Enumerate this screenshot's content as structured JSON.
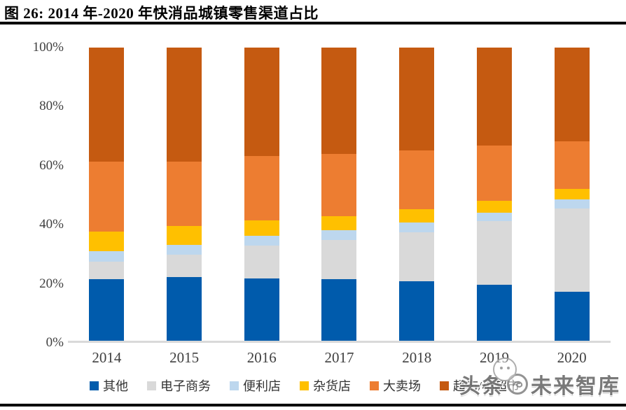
{
  "figure": {
    "title": "图 26: 2014 年-2020 年快消品城镇零售渠道占比"
  },
  "watermark": {
    "prefix": "头条",
    "suffix": "未来智库",
    "logo": "circle-logo-icon"
  },
  "chart_data": {
    "type": "bar",
    "stacked": true,
    "percent_stacked": true,
    "title": "2014 年-2020 年快消品城镇零售渠道占比",
    "categories": [
      "2014",
      "2015",
      "2016",
      "2017",
      "2018",
      "2019",
      "2020"
    ],
    "series": [
      {
        "name": "其他",
        "color": "#005BAC",
        "values": [
          21.0,
          21.8,
          21.2,
          20.9,
          20.2,
          19.1,
          16.8
        ]
      },
      {
        "name": "电子商务",
        "color": "#D9D9D9",
        "values": [
          6.0,
          7.5,
          11.2,
          13.5,
          16.8,
          21.6,
          28.4
        ]
      },
      {
        "name": "便利店",
        "color": "#BDD7EE",
        "values": [
          3.6,
          3.4,
          3.3,
          3.3,
          3.3,
          2.9,
          3.0
        ]
      },
      {
        "name": "杂货店",
        "color": "#FFC000",
        "values": [
          6.6,
          6.4,
          5.4,
          4.8,
          4.5,
          4.2,
          3.6
        ]
      },
      {
        "name": "大卖场",
        "color": "#ED7D31",
        "values": [
          23.8,
          22.1,
          21.9,
          21.2,
          20.1,
          18.7,
          16.3
        ]
      },
      {
        "name": "超市/小超市",
        "color": "#C55A11",
        "values": [
          39.0,
          38.8,
          37.0,
          36.3,
          35.1,
          33.5,
          31.9
        ]
      }
    ],
    "xlabel": "",
    "ylabel": "",
    "ylim": [
      0,
      100
    ],
    "yticks": [
      "0%",
      "20%",
      "40%",
      "60%",
      "80%",
      "100%"
    ],
    "grid": false,
    "legend_position": "bottom",
    "axis_line_color": "#D9D9D9",
    "tick_label_color": "#404040"
  }
}
